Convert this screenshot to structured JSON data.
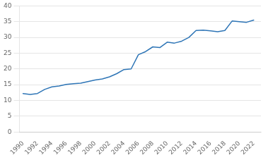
{
  "chart_data": {
    "type": "line",
    "x": [
      1990,
      1991,
      1992,
      1993,
      1994,
      1995,
      1996,
      1997,
      1998,
      1999,
      2000,
      2001,
      2002,
      2003,
      2004,
      2005,
      2006,
      2007,
      2008,
      2009,
      2010,
      2011,
      2012,
      2013,
      2014,
      2015,
      2016,
      2017,
      2018,
      2019,
      2020,
      2021,
      2022
    ],
    "values": [
      12.2,
      11.9,
      12.2,
      13.5,
      14.3,
      14.6,
      15.1,
      15.3,
      15.5,
      16.0,
      16.5,
      16.8,
      17.5,
      18.5,
      19.8,
      20.0,
      24.5,
      25.5,
      27.0,
      26.8,
      28.5,
      28.2,
      28.8,
      30.0,
      32.2,
      32.3,
      32.1,
      31.8,
      32.2,
      35.2,
      35.0,
      34.8,
      35.5
    ],
    "color": "#2e75b6",
    "xlim": [
      1989.5,
      2023.0
    ],
    "xticks": [
      1990,
      1992,
      1994,
      1996,
      1998,
      2000,
      2002,
      2004,
      2006,
      2008,
      2010,
      2012,
      2014,
      2016,
      2018,
      2020,
      2022
    ],
    "ylim": [
      0,
      40
    ],
    "yticks": [
      0,
      5,
      10,
      15,
      20,
      25,
      30,
      35,
      40
    ],
    "grid": "y"
  }
}
